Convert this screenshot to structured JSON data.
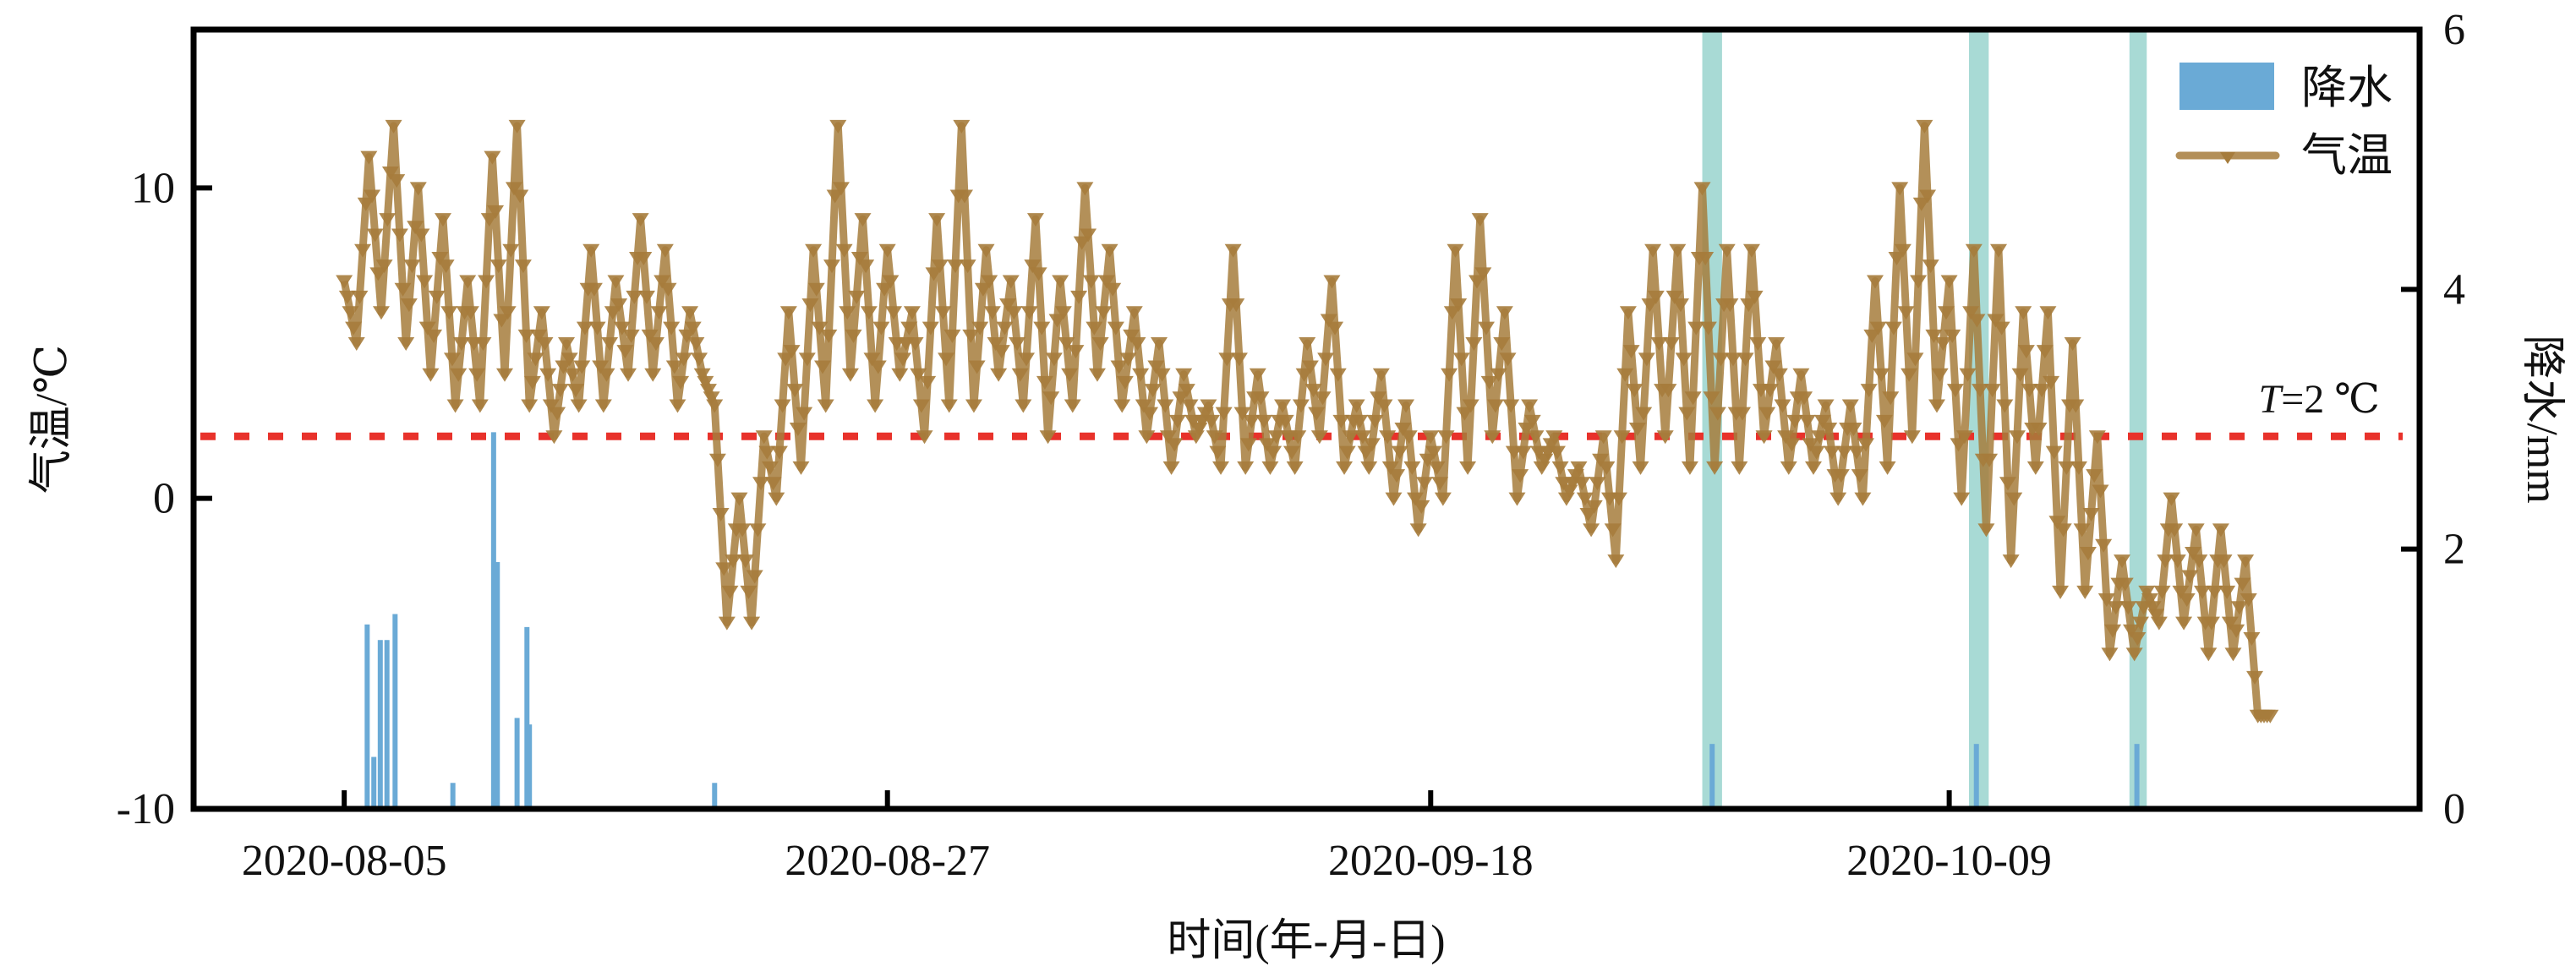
{
  "chart_data": {
    "type": "line",
    "title": "",
    "xlabel": "时间(年-月-日)",
    "ylabel_left": "气温/℃",
    "ylabel_right": "降水/mm",
    "x_unit": "days",
    "xlim": [
      -6.1,
      84.05
    ],
    "ylim_left": [
      -10,
      15.1
    ],
    "ylim_right": [
      0,
      6
    ],
    "x_ticks": [
      {
        "value": 0,
        "label": "2020-08-05"
      },
      {
        "value": 22,
        "label": "2020-08-27"
      },
      {
        "value": 44,
        "label": "2020-09-18"
      },
      {
        "value": 65,
        "label": "2020-10-09"
      }
    ],
    "y_ticks_left": [
      {
        "value": -10,
        "label": "-10"
      },
      {
        "value": 0,
        "label": "0"
      },
      {
        "value": 10,
        "label": "10"
      }
    ],
    "y_ticks_right": [
      {
        "value": 0,
        "label": "0"
      },
      {
        "value": 2,
        "label": "2"
      },
      {
        "value": 4,
        "label": "4"
      },
      {
        "value": 6,
        "label": "6"
      }
    ],
    "legend": {
      "placement": "top-right",
      "entries": [
        "降水",
        "气温"
      ]
    },
    "threshold": {
      "value": 2,
      "label_italic": "T",
      "label_rest": "=2 ℃",
      "color": "#e8322b"
    },
    "colors": {
      "temperature": "#a67c3c",
      "precipitation": "#6aaad6",
      "band": "#a8dad5"
    },
    "shaded_bands": [
      [
        55.0,
        55.8
      ],
      [
        65.8,
        66.6
      ],
      [
        72.3,
        73.0
      ]
    ],
    "series": [
      {
        "name": "气温",
        "axis": "left",
        "step_days": 0.5,
        "x_start": 0,
        "values": [
          7,
          5,
          11,
          6,
          12,
          5,
          10,
          4,
          9,
          3,
          7,
          3,
          11,
          4,
          12,
          3,
          6,
          2,
          5,
          3,
          8,
          3,
          7,
          4,
          9,
          4,
          8,
          3,
          6,
          4,
          3,
          -4,
          0,
          -4,
          2,
          0,
          6,
          1,
          8,
          3,
          12,
          4,
          9,
          3,
          8,
          4,
          6,
          2,
          9,
          3,
          12,
          3,
          8,
          4,
          7,
          3,
          9,
          2,
          7,
          3,
          10,
          4,
          8,
          3,
          6,
          2,
          5,
          1,
          4,
          2,
          3,
          1,
          8,
          1,
          4,
          1,
          3,
          1,
          5,
          2,
          7,
          1,
          3,
          1,
          4,
          0,
          3,
          -1,
          2,
          0,
          8,
          1,
          9,
          2,
          6,
          0,
          3,
          1,
          2,
          0,
          1,
          -1,
          2,
          -2,
          6,
          1,
          8,
          2,
          8,
          1,
          10,
          1,
          8,
          1,
          8,
          2,
          5,
          1,
          4,
          1,
          3,
          0,
          3,
          0,
          7,
          1,
          10,
          2,
          12,
          3,
          7,
          0,
          8,
          -1,
          8,
          -2,
          6,
          1,
          6,
          -3,
          5,
          -3,
          2,
          -5,
          -2,
          -5,
          -3,
          -4,
          0,
          -4,
          -1,
          -5,
          -1,
          -5,
          -2,
          -7,
          -7
        ]
      },
      {
        "name": "降水",
        "axis": "right",
        "points": [
          [
            0.93,
            1.42
          ],
          [
            1.2,
            0.4
          ],
          [
            1.46,
            1.3
          ],
          [
            1.73,
            1.3
          ],
          [
            2.06,
            1.5
          ],
          [
            4.4,
            0.2
          ],
          [
            6.05,
            2.9
          ],
          [
            6.2,
            1.9
          ],
          [
            7.0,
            0.7
          ],
          [
            7.4,
            1.4
          ],
          [
            7.5,
            0.65
          ],
          [
            15.0,
            0.2
          ],
          [
            55.4,
            0.5
          ],
          [
            66.1,
            0.5
          ],
          [
            72.6,
            0.5
          ]
        ]
      }
    ]
  }
}
